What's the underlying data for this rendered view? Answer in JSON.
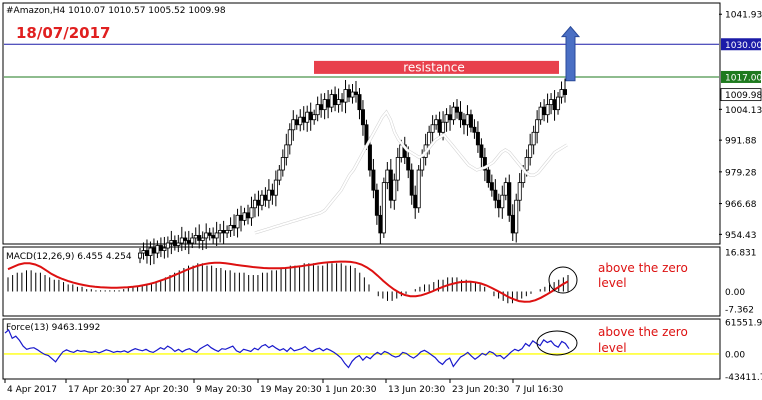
{
  "chart_data": {
    "type": "candlestick",
    "symbol_header": "#Amazon,H4  1010.07  1010.57  1005.52  1009.98",
    "date_label": "18/07/2017",
    "price_axis": {
      "range": [
        951.0,
        1046.0
      ],
      "ticks": [
        "1041.93",
        "1004.13",
        "991.88",
        "979.28",
        "966.68",
        "954.43"
      ],
      "current_price": "1009.98"
    },
    "levels": [
      {
        "label": "1030.00",
        "value": 1030.0,
        "color": "#1c1ca8"
      },
      {
        "label": "1017.00",
        "value": 1017.0,
        "color": "#1e7a1e"
      }
    ],
    "resistance": {
      "label": "resistance",
      "color": "#e8404c",
      "level": 1021.0
    },
    "arrow": {
      "direction": "up",
      "color": "#4a6fc4"
    },
    "x_labels": [
      "4 Apr 2017",
      "17 Apr 20:30",
      "27 Apr 20:30",
      "9 May 20:30",
      "19 May 20:30",
      "1 Jun 20:30",
      "13 Jun 20:30",
      "23 Jun 20:30",
      "7 Jul 16:30"
    ],
    "closes": [
      947,
      948,
      946,
      949,
      947,
      950,
      948,
      949,
      951,
      952,
      950,
      951,
      953,
      952,
      951,
      953,
      954,
      952,
      953,
      955,
      954,
      953,
      955,
      956,
      955,
      956,
      958,
      957,
      962,
      960,
      963,
      961,
      965,
      968,
      966,
      970,
      968,
      972,
      970,
      976,
      980,
      985,
      990,
      996,
      1000,
      998,
      1001,
      999,
      1003,
      1000,
      1002,
      1006,
      1004,
      1008,
      1005,
      1010,
      1006,
      1008,
      1007,
      1012,
      1009,
      1011,
      1010,
      1004,
      998,
      990,
      980,
      972,
      962,
      955,
      975,
      980,
      968,
      976,
      985,
      990,
      985,
      980,
      970,
      965,
      980,
      985,
      990,
      995,
      998,
      1000,
      995,
      999,
      1002,
      1000,
      1005,
      1003,
      1000,
      998,
      1002,
      997,
      995,
      990,
      985,
      980,
      975,
      972,
      968,
      965,
      970,
      975,
      962,
      955,
      968,
      975,
      980,
      985,
      990,
      995,
      1000,
      1005,
      1002,
      1006,
      1008,
      1004,
      1009,
      1012,
      1010
    ],
    "ma": [
      955,
      955.5,
      956,
      956.5,
      957,
      957.5,
      958,
      958.5,
      959,
      959.5,
      960,
      960.5,
      961,
      961.5,
      962,
      962.5,
      963,
      964,
      966,
      968,
      970,
      972,
      975,
      978,
      980,
      983,
      986,
      989,
      992,
      995,
      998,
      1001,
      1003,
      1000,
      995,
      992,
      990,
      988,
      987,
      986,
      985,
      986,
      988,
      990,
      992,
      993,
      994,
      992,
      990,
      988,
      986,
      984,
      982,
      981,
      980,
      980.5,
      981,
      982,
      983,
      985,
      987,
      988,
      987,
      985,
      983,
      981,
      979,
      978,
      978,
      979,
      981,
      983,
      985,
      987,
      988,
      989,
      990
    ],
    "macd": {
      "label": "MACD(12,26,9) 6.455 4.254",
      "range": [
        -10.0,
        18.5
      ],
      "ticks": [
        "16.831",
        "0.00",
        "-7.362"
      ],
      "signal_color": "#dd1111",
      "histogram": [
        6,
        7,
        8,
        8,
        9,
        9,
        8,
        8,
        7,
        6,
        5,
        5,
        4,
        3,
        3,
        2,
        2,
        1,
        1,
        0.5,
        0.5,
        0.5,
        0.5,
        0.5,
        0.5,
        1,
        1.5,
        2,
        2,
        2.5,
        3,
        3.5,
        4,
        5,
        6,
        7,
        8,
        9,
        10,
        11,
        11,
        12,
        12,
        11,
        11,
        10,
        10,
        9,
        9,
        8,
        8,
        8,
        7,
        7,
        7,
        8,
        8,
        9,
        9,
        10,
        10,
        11,
        11,
        11,
        12,
        12,
        12,
        11,
        11,
        12,
        12,
        12,
        12,
        11,
        11,
        10,
        8,
        6,
        3,
        0,
        -2,
        -3,
        -4,
        -4,
        -3,
        -2,
        -1,
        0,
        1,
        2,
        3,
        3,
        4,
        5,
        5,
        6,
        6,
        6,
        5,
        5,
        4,
        4,
        3,
        2,
        0,
        -2,
        -3,
        -4,
        -5,
        -5,
        -4,
        -3,
        -2,
        -1,
        0,
        1,
        2,
        3,
        4,
        5,
        6,
        7
      ],
      "signal": [
        9.5,
        10.5,
        11.5,
        12,
        12,
        11.5,
        10.5,
        9,
        7.5,
        6.3,
        5.3,
        4.5,
        3.8,
        3.2,
        2.7,
        2.3,
        2,
        1.8,
        1.7,
        1.6,
        1.6,
        1.7,
        1.8,
        2,
        2.3,
        2.7,
        3.2,
        3.8,
        4.6,
        5.4,
        6.3,
        7.3,
        8.3,
        9.3,
        10.2,
        11,
        11.6,
        12,
        12.2,
        12.2,
        12,
        11.7,
        11.3,
        11,
        10.7,
        10.4,
        10.2,
        10,
        9.9,
        9.9,
        9.9,
        10,
        10.2,
        10.5,
        10.8,
        11.2,
        11.5,
        11.9,
        12.2,
        12.4,
        12.6,
        12.7,
        12.7,
        12.6,
        12.2,
        11.5,
        10.3,
        8.7,
        6.7,
        4.6,
        2.6,
        0.9,
        -0.5,
        -1.5,
        -2,
        -2,
        -1.6,
        -0.9,
        0,
        1,
        2,
        2.8,
        3.4,
        3.9,
        4.1,
        4.2,
        3.9,
        3.4,
        2.6,
        1.5,
        0.3,
        -1,
        -2.3,
        -3.3,
        -4.1,
        -4.4,
        -4.3,
        -3.7,
        -2.7,
        -1.4,
        0,
        1.5,
        3,
        4.3
      ]
    },
    "force": {
      "label": "Force(13) 9463.1992",
      "range": [
        -46000.0,
        65000.0
      ],
      "ticks": [
        "61551.9",
        "0.00",
        "-43411.71"
      ],
      "line_color": "#1a1acc",
      "zero_color": "#ffff33",
      "values": [
        40000,
        46000,
        30000,
        34000,
        26000,
        15000,
        9000,
        11000,
        12000,
        8000,
        3000,
        -1000,
        -3000,
        -9000,
        -15000,
        -5000,
        4000,
        8000,
        5000,
        3000,
        7000,
        5000,
        6000,
        4000,
        3000,
        5000,
        2000,
        5000,
        8000,
        6000,
        3000,
        5000,
        4000,
        6000,
        3000,
        7000,
        10000,
        8000,
        6000,
        9000,
        5000,
        3000,
        7000,
        12000,
        9000,
        15000,
        11000,
        5000,
        9000,
        4000,
        8000,
        10000,
        6000,
        3000,
        10000,
        14000,
        18000,
        12000,
        8000,
        5000,
        10000,
        9000,
        12000,
        15000,
        6000,
        3000,
        9000,
        7000,
        5000,
        11000,
        8000,
        15000,
        18000,
        12000,
        16000,
        11000,
        7000,
        10000,
        5000,
        12000,
        6000,
        8000,
        10000,
        14000,
        8000,
        5000,
        9000,
        11000,
        6000,
        10000,
        7000,
        3000,
        -2000,
        -8000,
        -18000,
        -26000,
        -14000,
        -7000,
        -3000,
        -12000,
        -5000,
        -9000,
        -2000,
        3000,
        -1000,
        5000,
        2000,
        -3000,
        -6000,
        -4000,
        3000,
        1000,
        -4000,
        -8000,
        -3000,
        4000,
        7000,
        3000,
        -2000,
        -7000,
        -15000,
        -20000,
        -12000,
        -8000,
        -24000,
        -15000,
        -6000,
        -2000,
        3000,
        -4000,
        -10000,
        -5000,
        1000,
        -2000,
        5000,
        2000,
        -4000,
        -3000,
        -9000,
        -3000,
        4000,
        9000,
        6000,
        10000,
        20000,
        15000,
        25000,
        20000,
        16000,
        27000,
        22000,
        25000,
        17000,
        13000,
        24000,
        20000,
        10000
      ]
    },
    "notes": [
      {
        "text_line1": "above the zero",
        "text_line2": "level",
        "panel": "macd",
        "color": "#dd1111"
      },
      {
        "text_line1": "above the zero",
        "text_line2": "level",
        "panel": "force",
        "color": "#dd1111"
      }
    ]
  }
}
